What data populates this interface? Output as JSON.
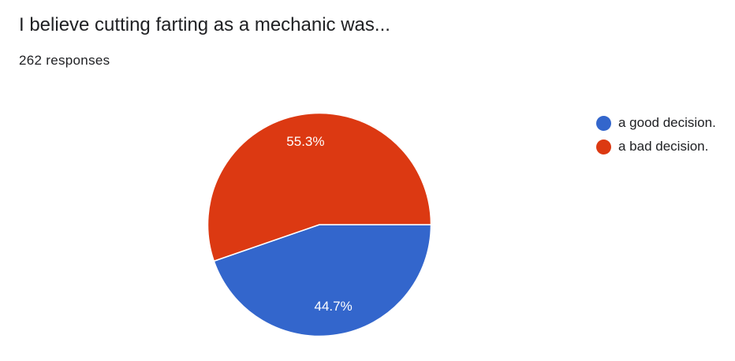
{
  "header": {
    "title": "I believe cutting farting as a mechanic was...",
    "responses": "262 responses"
  },
  "chart_data": {
    "type": "pie",
    "title": "",
    "slices": [
      {
        "label": "a good decision.",
        "value": 44.7,
        "display": "44.7%",
        "color": "#3366cc"
      },
      {
        "label": "a bad decision.",
        "value": 55.3,
        "display": "55.3%",
        "color": "#dc3912"
      }
    ],
    "legend_position": "top-right"
  }
}
